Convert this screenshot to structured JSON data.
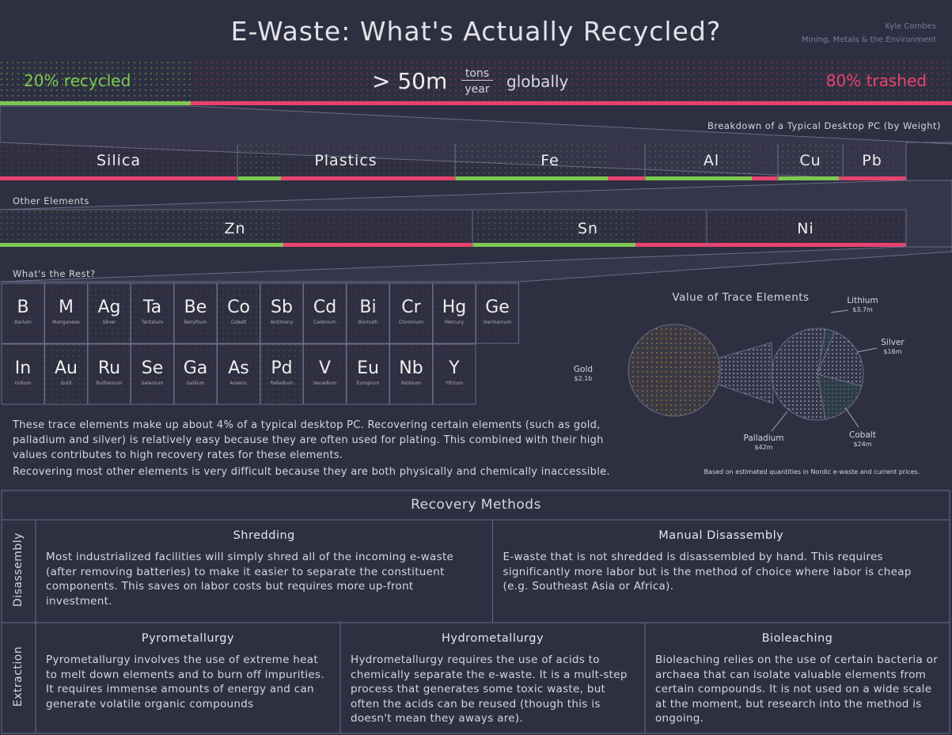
{
  "header": {
    "title": "E-Waste: What's Actually Recycled?",
    "author": "Kyle Combes",
    "subtitle": "Mining, Metals & the Environment"
  },
  "overview": {
    "recycled": "20% recycled",
    "amount": "> 50m",
    "unit_top": "tons",
    "unit_bottom": "year",
    "scope": "globally",
    "trashed": "80% trashed"
  },
  "breakdown": {
    "title": "Breakdown of a Typical Desktop PC (by Weight)",
    "items": [
      "Silica",
      "Plastics",
      "Fe",
      "Al",
      "Cu",
      "Pb"
    ]
  },
  "other": {
    "title": "Other Elements",
    "items": [
      "Zn",
      "Sn",
      "Ni"
    ]
  },
  "rest": {
    "title": "What's the Rest?",
    "elements": [
      {
        "symbol": "B",
        "name": "Barium"
      },
      {
        "symbol": "M",
        "name": "Manganese"
      },
      {
        "symbol": "Ag",
        "name": "Silver"
      },
      {
        "symbol": "Ta",
        "name": "Tantalum"
      },
      {
        "symbol": "Be",
        "name": "Beryllium"
      },
      {
        "symbol": "Co",
        "name": "Cobalt"
      },
      {
        "symbol": "Sb",
        "name": "Antimony"
      },
      {
        "symbol": "Cd",
        "name": "Cadmium"
      },
      {
        "symbol": "Bi",
        "name": "Bismuth"
      },
      {
        "symbol": "Cr",
        "name": "Chromium"
      },
      {
        "symbol": "Hg",
        "name": "Mercury"
      },
      {
        "symbol": "Ge",
        "name": "Germanium"
      },
      {
        "symbol": "In",
        "name": "Indium"
      },
      {
        "symbol": "Au",
        "name": "Gold"
      },
      {
        "symbol": "Ru",
        "name": "Ruthenium"
      },
      {
        "symbol": "Se",
        "name": "Selenium"
      },
      {
        "symbol": "Ga",
        "name": "Gallium"
      },
      {
        "symbol": "As",
        "name": "Arsenic"
      },
      {
        "symbol": "Pd",
        "name": "Palladium"
      },
      {
        "symbol": "V",
        "name": "Vanadium"
      },
      {
        "symbol": "Eu",
        "name": "Europium"
      },
      {
        "symbol": "Nb",
        "name": "Niobium"
      },
      {
        "symbol": "Y",
        "name": "Yttrium"
      }
    ]
  },
  "paragraphs": [
    "These trace elements make up about 4% of a typical desktop PC. Recovering certain elements (such as gold, palladium and silver) is relatively easy because they are often used for plating. This combined with their high values contributes to high recovery rates for these elements.",
    "Recovering most other elements is very difficult because they are both physically and chemically inaccessible."
  ],
  "trace_value": {
    "title": "Value of Trace Elements",
    "slices": [
      {
        "label": "Gold",
        "value": "$2.1b"
      },
      {
        "label": "Lithium",
        "value": "$3.7m"
      },
      {
        "label": "Silver",
        "value": "$16m"
      },
      {
        "label": "Cobalt",
        "value": "$24m"
      },
      {
        "label": "Palladium",
        "value": "$42m"
      }
    ],
    "note": "Based on estimated quantities in Nordic e-waste and current prices."
  },
  "methods": {
    "title": "Recovery Methods",
    "groups": [
      {
        "label": "Disassembly",
        "methods": [
          {
            "title": "Shredding",
            "text": "Most industrialized facilities will simply shred all of the incoming e-waste (after removing batteries) to make it easier to separate the constituent components. This saves on labor costs but requires more up-front investment."
          },
          {
            "title": "Manual Disassembly",
            "text": "E-waste that is not shredded is disassembled by hand. This requires significantly more labor but is the method of choice where labor is cheap (e.g. Southeast Asia or Africa)."
          }
        ]
      },
      {
        "label": "Extraction",
        "methods": [
          {
            "title": "Pyrometallurgy",
            "text": "Pyrometallurgy involves the use of extreme heat to melt down elements and to burn off impurities. It requires immense amounts of energy and can generate volatile organic compounds"
          },
          {
            "title": "Hydrometallurgy",
            "text": "Hydrometallurgy requires the use of acids to chemically separate the e-waste. It is a mult-step process that generates some toxic waste, but often the acids can be reused (though this is doesn't mean they aways are)."
          },
          {
            "title": "Bioleaching",
            "text": "Bioleaching relies on the use of certain bacteria or archaea that can isolate valuable elements from certain compounds. It is not used on a wide scale at the moment, but research into the method is ongoing."
          }
        ]
      }
    ]
  }
}
